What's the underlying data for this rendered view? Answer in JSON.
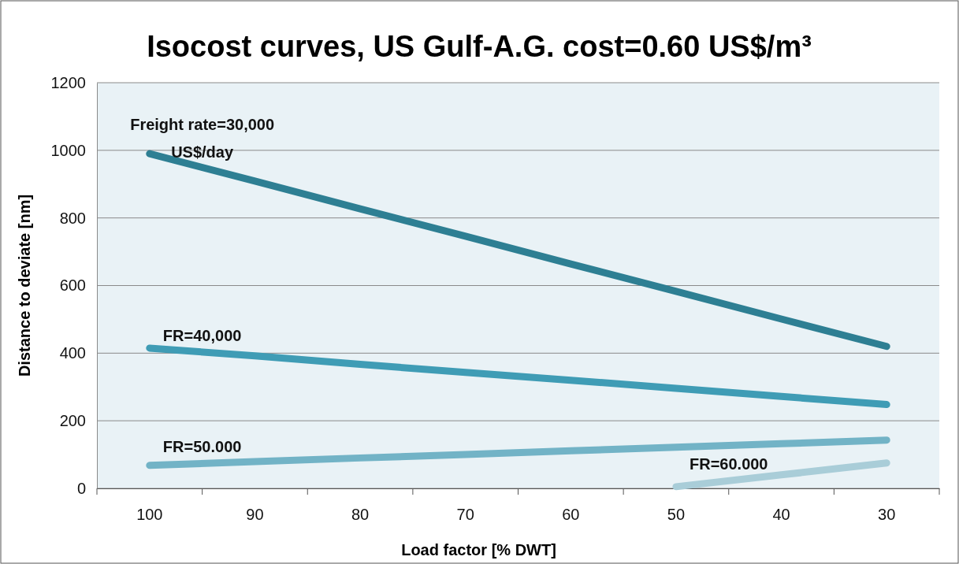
{
  "chart_data": {
    "type": "line",
    "title": "Isocost curves, US Gulf-A.G. cost=0.60 US$/m³",
    "xlabel": "Load factor [% DWT]",
    "ylabel": "Distance to deviate [nm]",
    "categories": [
      "100",
      "90",
      "80",
      "70",
      "60",
      "50",
      "40",
      "30"
    ],
    "series": [
      {
        "name": "Freight rate=30,000 US$/day",
        "color": "#2e7f93",
        "values": [
          990,
          909,
          827,
          746,
          664,
          583,
          501,
          420
        ]
      },
      {
        "name": "FR=40,000",
        "color": "#3f9cb5",
        "values": [
          415,
          392,
          367,
          343,
          320,
          296,
          272,
          248
        ]
      },
      {
        "name": "FR=50.000",
        "color": "#72b3c6",
        "values": [
          68,
          79,
          90,
          100,
          111,
          122,
          132,
          143
        ]
      },
      {
        "name": "FR=60.000",
        "color": "#a9cdd8",
        "values": [
          null,
          null,
          null,
          null,
          null,
          5,
          40,
          75
        ]
      }
    ],
    "ylim": [
      0,
      1200
    ],
    "yticks": [
      0,
      200,
      400,
      600,
      800,
      1000,
      1200
    ],
    "grid": "y",
    "marker": "none",
    "line_style": "solid"
  }
}
